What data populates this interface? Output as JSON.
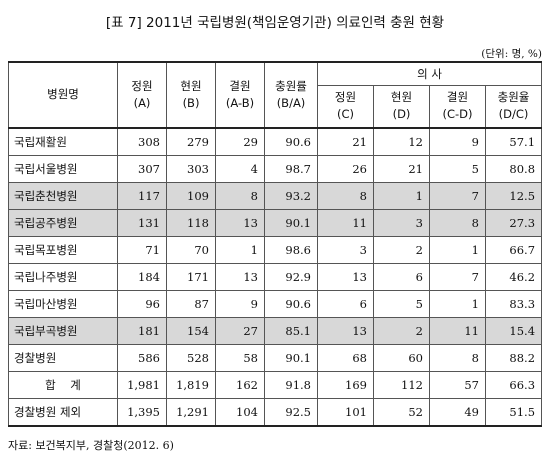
{
  "title": "[표 7] 2011년 국립병원(책임운영기관) 의료인력 충원 현황",
  "unit": "(단위: 명, %)",
  "header": {
    "hospital": "병원명",
    "quota": "정원",
    "quota_sub": "(A)",
    "current": "현원",
    "current_sub": "(B)",
    "vacancy": "결원",
    "vacancy_sub": "(A-B)",
    "fill_rate": "충원률",
    "fill_rate_sub": "(B/A)",
    "doctor_group": "의 사",
    "d_quota": "정원",
    "d_quota_sub": "(C)",
    "d_current": "현원",
    "d_current_sub": "(D)",
    "d_vacancy": "결원",
    "d_vacancy_sub": "(C-D)",
    "d_fill_rate": "충원율",
    "d_fill_rate_sub": "(D/C)"
  },
  "rows": [
    {
      "name": "국립재활원",
      "cells": [
        "308",
        "279",
        "29",
        "90.6",
        "21",
        "12",
        "9",
        "57.1"
      ]
    },
    {
      "name": "국립서울병원",
      "cells": [
        "307",
        "303",
        "4",
        "98.7",
        "26",
        "21",
        "5",
        "80.8"
      ]
    },
    {
      "name": "국립춘천병원",
      "cells": [
        "117",
        "109",
        "8",
        "93.2",
        "8",
        "1",
        "7",
        "12.5"
      ]
    },
    {
      "name": "국립공주병원",
      "cells": [
        "131",
        "118",
        "13",
        "90.1",
        "11",
        "3",
        "8",
        "27.3"
      ]
    },
    {
      "name": "국립목포병원",
      "cells": [
        "71",
        "70",
        "1",
        "98.6",
        "3",
        "2",
        "1",
        "66.7"
      ]
    },
    {
      "name": "국립나주병원",
      "cells": [
        "184",
        "171",
        "13",
        "92.9",
        "13",
        "6",
        "7",
        "46.2"
      ]
    },
    {
      "name": "국립마산병원",
      "cells": [
        "96",
        "87",
        "9",
        "90.6",
        "6",
        "5",
        "1",
        "83.3"
      ]
    },
    {
      "name": "국립부곡병원",
      "cells": [
        "181",
        "154",
        "27",
        "85.1",
        "13",
        "2",
        "11",
        "15.4"
      ]
    },
    {
      "name": "경찰병원",
      "cells": [
        "586",
        "528",
        "58",
        "90.1",
        "68",
        "60",
        "8",
        "88.2"
      ]
    },
    {
      "name": "합    계",
      "cells": [
        "1,981",
        "1,819",
        "162",
        "91.8",
        "169",
        "112",
        "57",
        "66.3"
      ]
    },
    {
      "name": "경찰병원 제외",
      "cells": [
        "1,395",
        "1,291",
        "104",
        "92.5",
        "101",
        "52",
        "49",
        "51.5"
      ]
    }
  ],
  "source": "자료: 보건복지부, 경찰청(2012. 6)",
  "colors": {
    "shade": "#d8d8d8",
    "border": "#555555"
  }
}
